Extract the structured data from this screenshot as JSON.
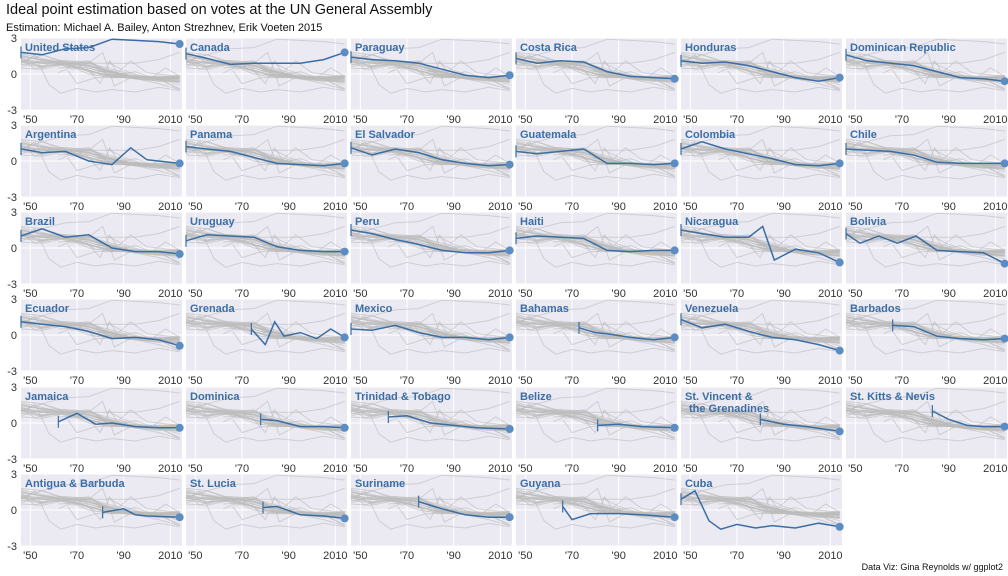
{
  "title": "Ideal point estimation based on votes at the UN General Assembly",
  "subtitle": "Estimation: Michael A. Bailey, Anton Strezhnev, Erik Voeten 2015",
  "caption": "Data Viz: Gina Reynolds w/ ggplot2",
  "colors": {
    "highlight": "#3a6ea5",
    "background_lines": "#bdbdbd",
    "panel": "#ebe9f2",
    "strip": "#3a6ea5"
  },
  "chart_data": {
    "type": "line",
    "facet": "small-multiples",
    "xlabel": "",
    "ylabel": "",
    "xlim": [
      1946,
      2015
    ],
    "ylim": [
      -3,
      3
    ],
    "x_ticks": [
      1950,
      1970,
      1990,
      2010
    ],
    "x_tick_labels": [
      "'50",
      "'70",
      "'90",
      "2010"
    ],
    "y_ticks": [
      -3,
      0,
      3
    ],
    "y_tick_labels": [
      "-3",
      "0",
      "3"
    ],
    "grid": true,
    "legend": "none",
    "series": [
      {
        "name": "United States",
        "x": [
          1946,
          1955,
          1965,
          1975,
          1985,
          1995,
          2005,
          2014
        ],
        "y": [
          1.8,
          1.6,
          2.1,
          2.2,
          2.9,
          2.8,
          2.7,
          2.5
        ]
      },
      {
        "name": "Canada",
        "x": [
          1946,
          1955,
          1965,
          1975,
          1985,
          1995,
          2005,
          2014
        ],
        "y": [
          1.7,
          1.3,
          0.8,
          0.9,
          0.9,
          0.9,
          1.2,
          1.8
        ]
      },
      {
        "name": "Paraguay",
        "x": [
          1946,
          1955,
          1965,
          1975,
          1985,
          1995,
          2005,
          2014
        ],
        "y": [
          1.4,
          1.2,
          1.1,
          0.9,
          0.4,
          -0.1,
          -0.3,
          -0.1
        ]
      },
      {
        "name": "Costa Rica",
        "x": [
          1946,
          1955,
          1965,
          1975,
          1985,
          1995,
          2005,
          2014
        ],
        "y": [
          1.3,
          0.9,
          1.1,
          1.0,
          0.2,
          -0.2,
          -0.3,
          -0.4
        ]
      },
      {
        "name": "Honduras",
        "x": [
          1946,
          1955,
          1965,
          1975,
          1985,
          1995,
          2005,
          2014
        ],
        "y": [
          1.1,
          0.9,
          1.0,
          0.7,
          0.2,
          -0.3,
          -0.6,
          -0.3
        ]
      },
      {
        "name": "Dominican Republic",
        "x": [
          1946,
          1955,
          1965,
          1975,
          1985,
          1995,
          2005,
          2014
        ],
        "y": [
          1.6,
          1.1,
          0.9,
          0.7,
          0.2,
          -0.3,
          -0.4,
          -0.6
        ]
      },
      {
        "name": "Argentina",
        "x": [
          1946,
          1955,
          1965,
          1975,
          1985,
          1993,
          2000,
          2014
        ],
        "y": [
          1.0,
          0.7,
          0.8,
          0.0,
          -0.3,
          1.1,
          0.1,
          -0.2
        ]
      },
      {
        "name": "Panama",
        "x": [
          1946,
          1955,
          1965,
          1975,
          1985,
          1995,
          2005,
          2014
        ],
        "y": [
          1.2,
          1.0,
          0.8,
          0.3,
          -0.2,
          -0.3,
          -0.4,
          -0.2
        ]
      },
      {
        "name": "El Salvador",
        "x": [
          1946,
          1955,
          1965,
          1975,
          1985,
          1995,
          2005,
          2014
        ],
        "y": [
          1.1,
          0.5,
          1.0,
          0.7,
          0.1,
          -0.2,
          -0.4,
          -0.3
        ]
      },
      {
        "name": "Guatemala",
        "x": [
          1946,
          1955,
          1965,
          1975,
          1985,
          1995,
          2005,
          2014
        ],
        "y": [
          0.8,
          0.6,
          0.8,
          1.0,
          -0.2,
          -0.2,
          -0.3,
          -0.2
        ]
      },
      {
        "name": "Colombia",
        "x": [
          1946,
          1955,
          1965,
          1975,
          1985,
          1995,
          2005,
          2014
        ],
        "y": [
          1.0,
          1.6,
          1.0,
          0.6,
          0.2,
          -0.3,
          -0.4,
          -0.2
        ]
      },
      {
        "name": "Chile",
        "x": [
          1946,
          1955,
          1965,
          1975,
          1985,
          1995,
          2005,
          2014
        ],
        "y": [
          1.0,
          0.9,
          0.8,
          0.5,
          -0.1,
          -0.2,
          -0.2,
          -0.2
        ]
      },
      {
        "name": "Brazil",
        "x": [
          1946,
          1955,
          1965,
          1975,
          1985,
          1995,
          2005,
          2014
        ],
        "y": [
          1.0,
          1.6,
          0.9,
          1.1,
          0.0,
          -0.3,
          -0.3,
          -0.5
        ]
      },
      {
        "name": "Uruguay",
        "x": [
          1946,
          1955,
          1965,
          1975,
          1985,
          1995,
          2005,
          2014
        ],
        "y": [
          0.6,
          1.1,
          1.0,
          0.9,
          0.1,
          -0.2,
          -0.3,
          -0.3
        ]
      },
      {
        "name": "Peru",
        "x": [
          1946,
          1955,
          1965,
          1975,
          1985,
          1995,
          2005,
          2014
        ],
        "y": [
          1.5,
          1.2,
          0.7,
          0.3,
          -0.2,
          -0.4,
          -0.4,
          -0.2
        ]
      },
      {
        "name": "Haiti",
        "x": [
          1946,
          1955,
          1965,
          1975,
          1985,
          1995,
          2005,
          2014
        ],
        "y": [
          0.8,
          1.0,
          0.9,
          0.8,
          -0.2,
          -0.3,
          -0.2,
          -0.2
        ]
      },
      {
        "name": "Nicaragua",
        "x": [
          1946,
          1955,
          1965,
          1975,
          1981,
          1986,
          1995,
          2005,
          2014
        ],
        "y": [
          1.5,
          1.2,
          0.9,
          0.9,
          1.8,
          -1.0,
          -0.1,
          -0.4,
          -1.2
        ]
      },
      {
        "name": "Bolivia",
        "x": [
          1946,
          1952,
          1960,
          1968,
          1976,
          1985,
          1995,
          2005,
          2014
        ],
        "y": [
          1.2,
          0.4,
          1.0,
          0.4,
          1.0,
          -0.2,
          -0.3,
          -0.4,
          -1.3
        ]
      },
      {
        "name": "Ecuador",
        "x": [
          1946,
          1955,
          1965,
          1975,
          1985,
          1995,
          2005,
          2014
        ],
        "y": [
          1.1,
          0.9,
          0.7,
          0.3,
          -0.3,
          -0.2,
          -0.4,
          -0.9
        ]
      },
      {
        "name": "Grenada",
        "x": [
          1974,
          1980,
          1984,
          1988,
          1995,
          2002,
          2008,
          2014
        ],
        "y": [
          0.5,
          -0.8,
          1.1,
          -0.1,
          0.2,
          -0.3,
          0.5,
          -0.2
        ]
      },
      {
        "name": "Mexico",
        "x": [
          1946,
          1955,
          1965,
          1975,
          1985,
          1995,
          2005,
          2014
        ],
        "y": [
          0.5,
          0.4,
          0.8,
          0.2,
          -0.2,
          -0.2,
          -0.4,
          -0.2
        ]
      },
      {
        "name": "Bahamas",
        "x": [
          1973,
          1980,
          1985,
          1995,
          2005,
          2014
        ],
        "y": [
          0.6,
          0.2,
          0.1,
          -0.2,
          -0.4,
          -0.2
        ]
      },
      {
        "name": "Venezuela",
        "x": [
          1946,
          1955,
          1965,
          1975,
          1985,
          1995,
          2005,
          2014
        ],
        "y": [
          1.3,
          0.6,
          0.9,
          0.3,
          -0.2,
          -0.4,
          -0.8,
          -1.3
        ]
      },
      {
        "name": "Barbados",
        "x": [
          1966,
          1975,
          1985,
          1995,
          2005,
          2014
        ],
        "y": [
          0.8,
          0.7,
          -0.1,
          -0.3,
          -0.4,
          -0.3
        ]
      },
      {
        "name": "Jamaica",
        "x": [
          1962,
          1970,
          1978,
          1985,
          1995,
          2005,
          2014
        ],
        "y": [
          0.1,
          0.8,
          -0.1,
          0.0,
          -0.3,
          -0.4,
          -0.4
        ]
      },
      {
        "name": "Dominica",
        "x": [
          1978,
          1985,
          1995,
          2005,
          2014
        ],
        "y": [
          0.3,
          0.2,
          -0.3,
          -0.3,
          -0.4
        ]
      },
      {
        "name": "Trinidad & Tobago",
        "x": [
          1962,
          1970,
          1980,
          1990,
          2000,
          2014
        ],
        "y": [
          0.5,
          0.6,
          0.0,
          -0.2,
          -0.4,
          -0.5
        ]
      },
      {
        "name": "Belize",
        "x": [
          1981,
          1990,
          2000,
          2014
        ],
        "y": [
          -0.2,
          -0.1,
          -0.3,
          -0.4
        ]
      },
      {
        "name": "St. Vincent &\nthe Grenadines",
        "x": [
          1980,
          1990,
          2000,
          2014
        ],
        "y": [
          0.3,
          -0.1,
          -0.3,
          -0.7
        ]
      },
      {
        "name": "St. Kitts & Nevis",
        "x": [
          1983,
          1990,
          1998,
          2005,
          2014
        ],
        "y": [
          1.0,
          0.3,
          -0.2,
          -0.3,
          -0.3
        ]
      },
      {
        "name": "Antigua & Barbuda",
        "x": [
          1981,
          1990,
          1995,
          2000,
          2014
        ],
        "y": [
          -0.2,
          0.1,
          -0.4,
          -0.5,
          -0.6
        ]
      },
      {
        "name": "St. Lucia",
        "x": [
          1979,
          1985,
          1995,
          2005,
          2014
        ],
        "y": [
          0.2,
          0.3,
          -0.4,
          -0.5,
          -0.7
        ]
      },
      {
        "name": "Suriname",
        "x": [
          1975,
          1985,
          1995,
          2005,
          2014
        ],
        "y": [
          0.7,
          0.1,
          -0.4,
          -0.6,
          -0.6
        ]
      },
      {
        "name": "Guyana",
        "x": [
          1966,
          1970,
          1978,
          1990,
          2000,
          2014
        ],
        "y": [
          0.3,
          -0.8,
          -0.3,
          -0.3,
          -0.4,
          -0.6
        ]
      },
      {
        "name": "Cuba",
        "x": [
          1946,
          1952,
          1958,
          1963,
          1970,
          1978,
          1985,
          1995,
          2005,
          2014
        ],
        "y": [
          0.9,
          1.6,
          -0.9,
          -1.6,
          -1.2,
          -1.5,
          -1.3,
          -1.5,
          -1.1,
          -1.4
        ]
      }
    ]
  }
}
